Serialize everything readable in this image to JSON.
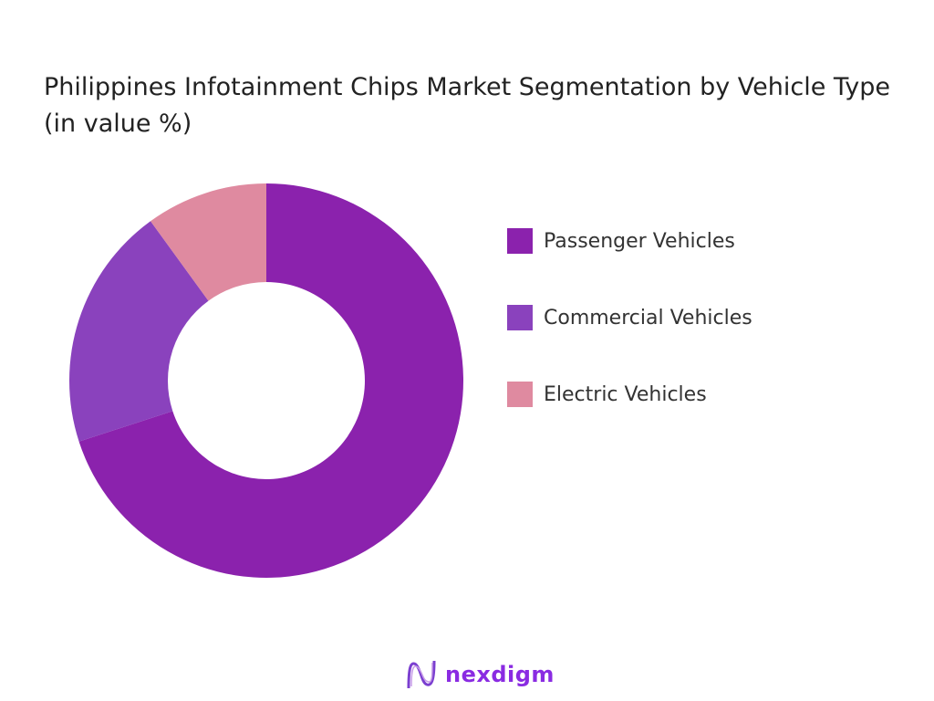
{
  "chart_data": {
    "type": "pie",
    "variant": "donut",
    "title": "Philippines Infotainment Chips Market Segmentation by Vehicle Type (in value %)",
    "categories": [
      "Passenger Vehicles",
      "Commercial Vehicles",
      "Electric Vehicles"
    ],
    "values": [
      70,
      20,
      10
    ],
    "colors": [
      "#8b22ad",
      "#8a42bd",
      "#df8aa0"
    ],
    "legend_position": "right"
  },
  "brand": {
    "name": "nexdigm",
    "color": "#8a2be2"
  }
}
